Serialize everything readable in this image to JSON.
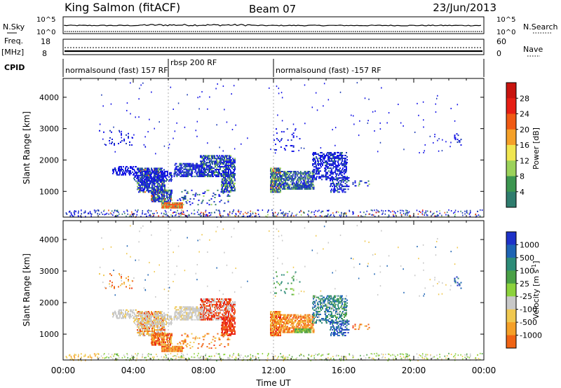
{
  "header": {
    "station": "King Salmon (fitACF)",
    "beam": "Beam 07",
    "date": "23/Jun/2013"
  },
  "strips": {
    "nsky_label": "N.Sky",
    "nsky_ticks": [
      "10^5",
      "10^0"
    ],
    "nsearch_label": "N.Search",
    "nsearch_ticks": [
      "10^5",
      "10^0"
    ],
    "freq_label": "Freq.",
    "freq_unit": "[MHz]",
    "freq_ticks": [
      "18",
      "8"
    ],
    "nave_label": "Nave",
    "nave_ticks": [
      "60",
      "0"
    ],
    "cpid_label": "CPID",
    "cpid_segments": [
      {
        "label": "normalsound (fast) 157 RF",
        "start_h": 0,
        "end_h": 6
      },
      {
        "label": "rbsp 200 RF",
        "start_h": 6,
        "end_h": 12
      },
      {
        "label": "normalsound (fast) -157 RF",
        "start_h": 12,
        "end_h": 24
      }
    ]
  },
  "colors": {
    "power_scale": [
      "#1010e6",
      "#1e3cb4",
      "#2f7d6e",
      "#3c9650",
      "#9bd25a",
      "#f0e650",
      "#f5a028",
      "#f05a14",
      "#e61e14",
      "#c8140f"
    ],
    "velocity_scale": [
      "#1e32c8",
      "#1e64b4",
      "#2d8c78",
      "#4aa046",
      "#8cd23c",
      "#c8c8c8",
      "#f0c850",
      "#f5a028",
      "#f06414",
      "#f03c14",
      "#e61414"
    ]
  },
  "chart_data": [
    {
      "type": "heatmap",
      "name": "power",
      "xlabel": "",
      "ylabel": "Slant Range [km]",
      "xlim": [
        0,
        24
      ],
      "ylim": [
        180,
        4600
      ],
      "yticks": [
        1000,
        2000,
        3000,
        4000
      ],
      "colorbar_label": "Power [dB]",
      "colorbar_ticks": [
        "28",
        "24",
        "20",
        "16",
        "12",
        "8",
        "4"
      ],
      "colorbar_range": [
        0,
        30
      ]
    },
    {
      "type": "heatmap",
      "name": "velocity",
      "xlabel": "Time UT",
      "ylabel": "Slant Range [km]",
      "xlim": [
        0,
        24
      ],
      "ylim": [
        180,
        4600
      ],
      "x_tick_labels": [
        "00:00",
        "04:00",
        "08:00",
        "12:00",
        "16:00",
        "20:00",
        "00:00"
      ],
      "yticks": [
        1000,
        2000,
        3000,
        4000
      ],
      "colorbar_label": "Velocity [m s^-1]",
      "colorbar_ticks": [
        "1000",
        "500",
        "100",
        "25",
        "-25",
        "-100",
        "-500",
        "-1000"
      ]
    }
  ]
}
